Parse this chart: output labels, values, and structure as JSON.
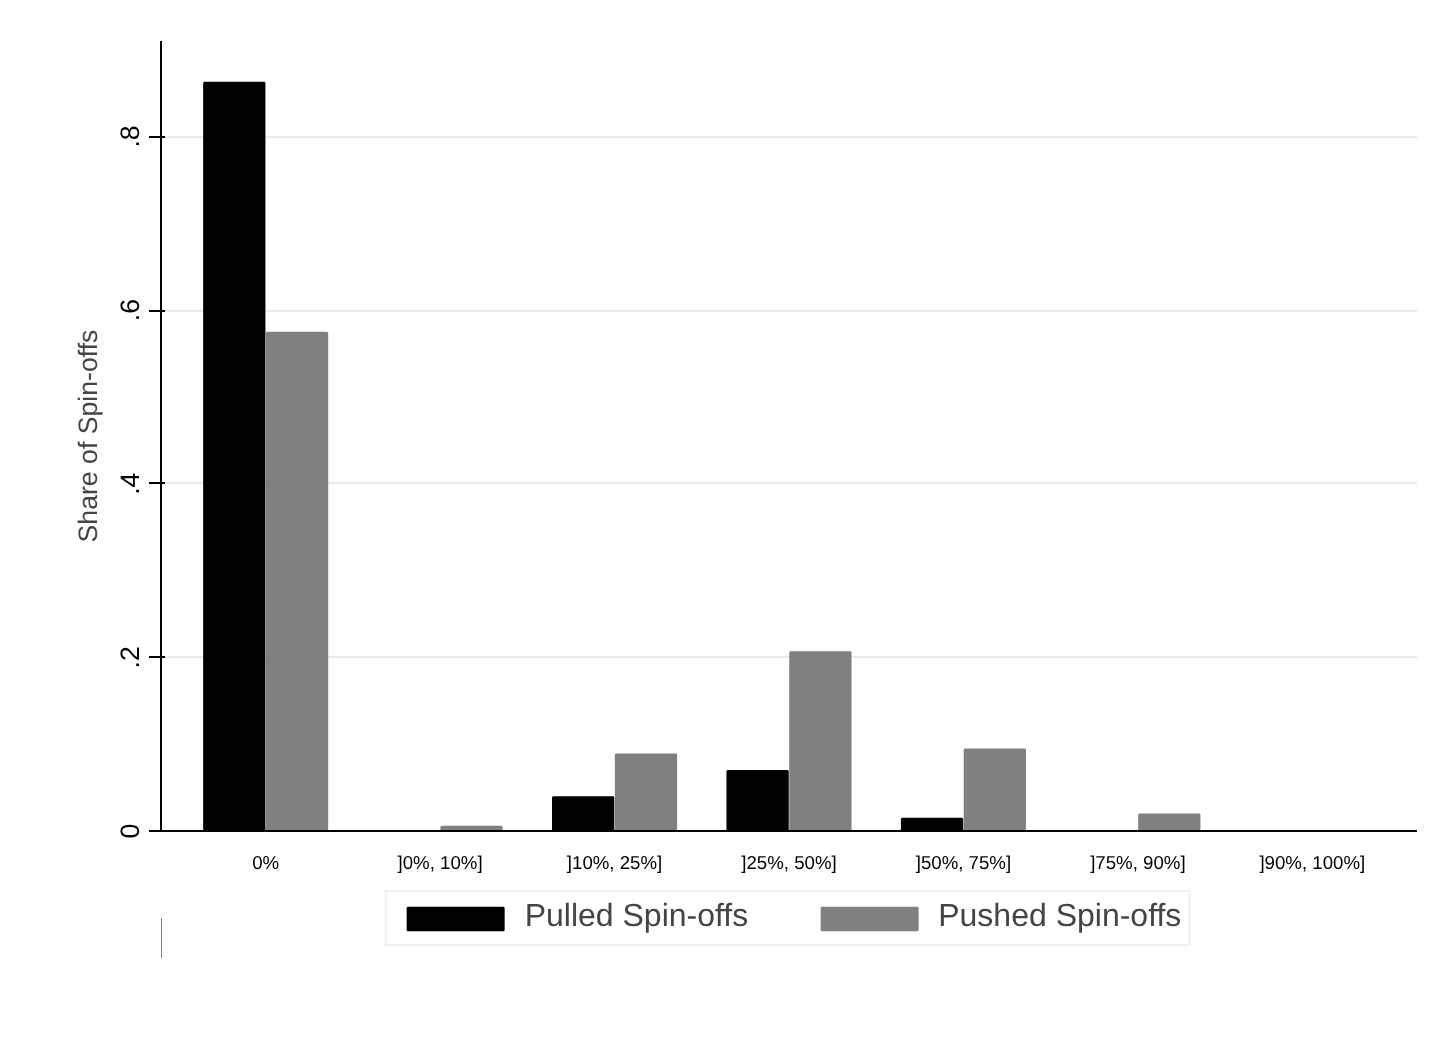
{
  "chart_data": {
    "type": "bar",
    "ylabel": "Share of Spin-offs",
    "categories": [
      "0%",
      "]0%, 10%]",
      "]10%, 25%]",
      "]25%, 50%]",
      "]50%, 75%]",
      "]75%, 90%]",
      "]90%, 100%]"
    ],
    "series": [
      {
        "name": "Pulled Spin-offs",
        "color": "#000000",
        "values": [
          0.862,
          0,
          0.039,
          0.069,
          0.014,
          0,
          0
        ]
      },
      {
        "name": "Pushed Spin-offs",
        "color": "#808080",
        "values": [
          0.574,
          0.005,
          0.088,
          0.206,
          0.094,
          0.019,
          0
        ]
      }
    ],
    "ylim": [
      0,
      0.91
    ],
    "yticks": [
      0,
      {
        "value": 0.2,
        "label": ".2"
      },
      {
        "value": 0.4,
        "label": ".4"
      },
      {
        "value": 0.6,
        "label": ".6"
      },
      {
        "value": 0.8,
        "label": ".8"
      }
    ],
    "grid": "y",
    "legend": "bottom"
  }
}
